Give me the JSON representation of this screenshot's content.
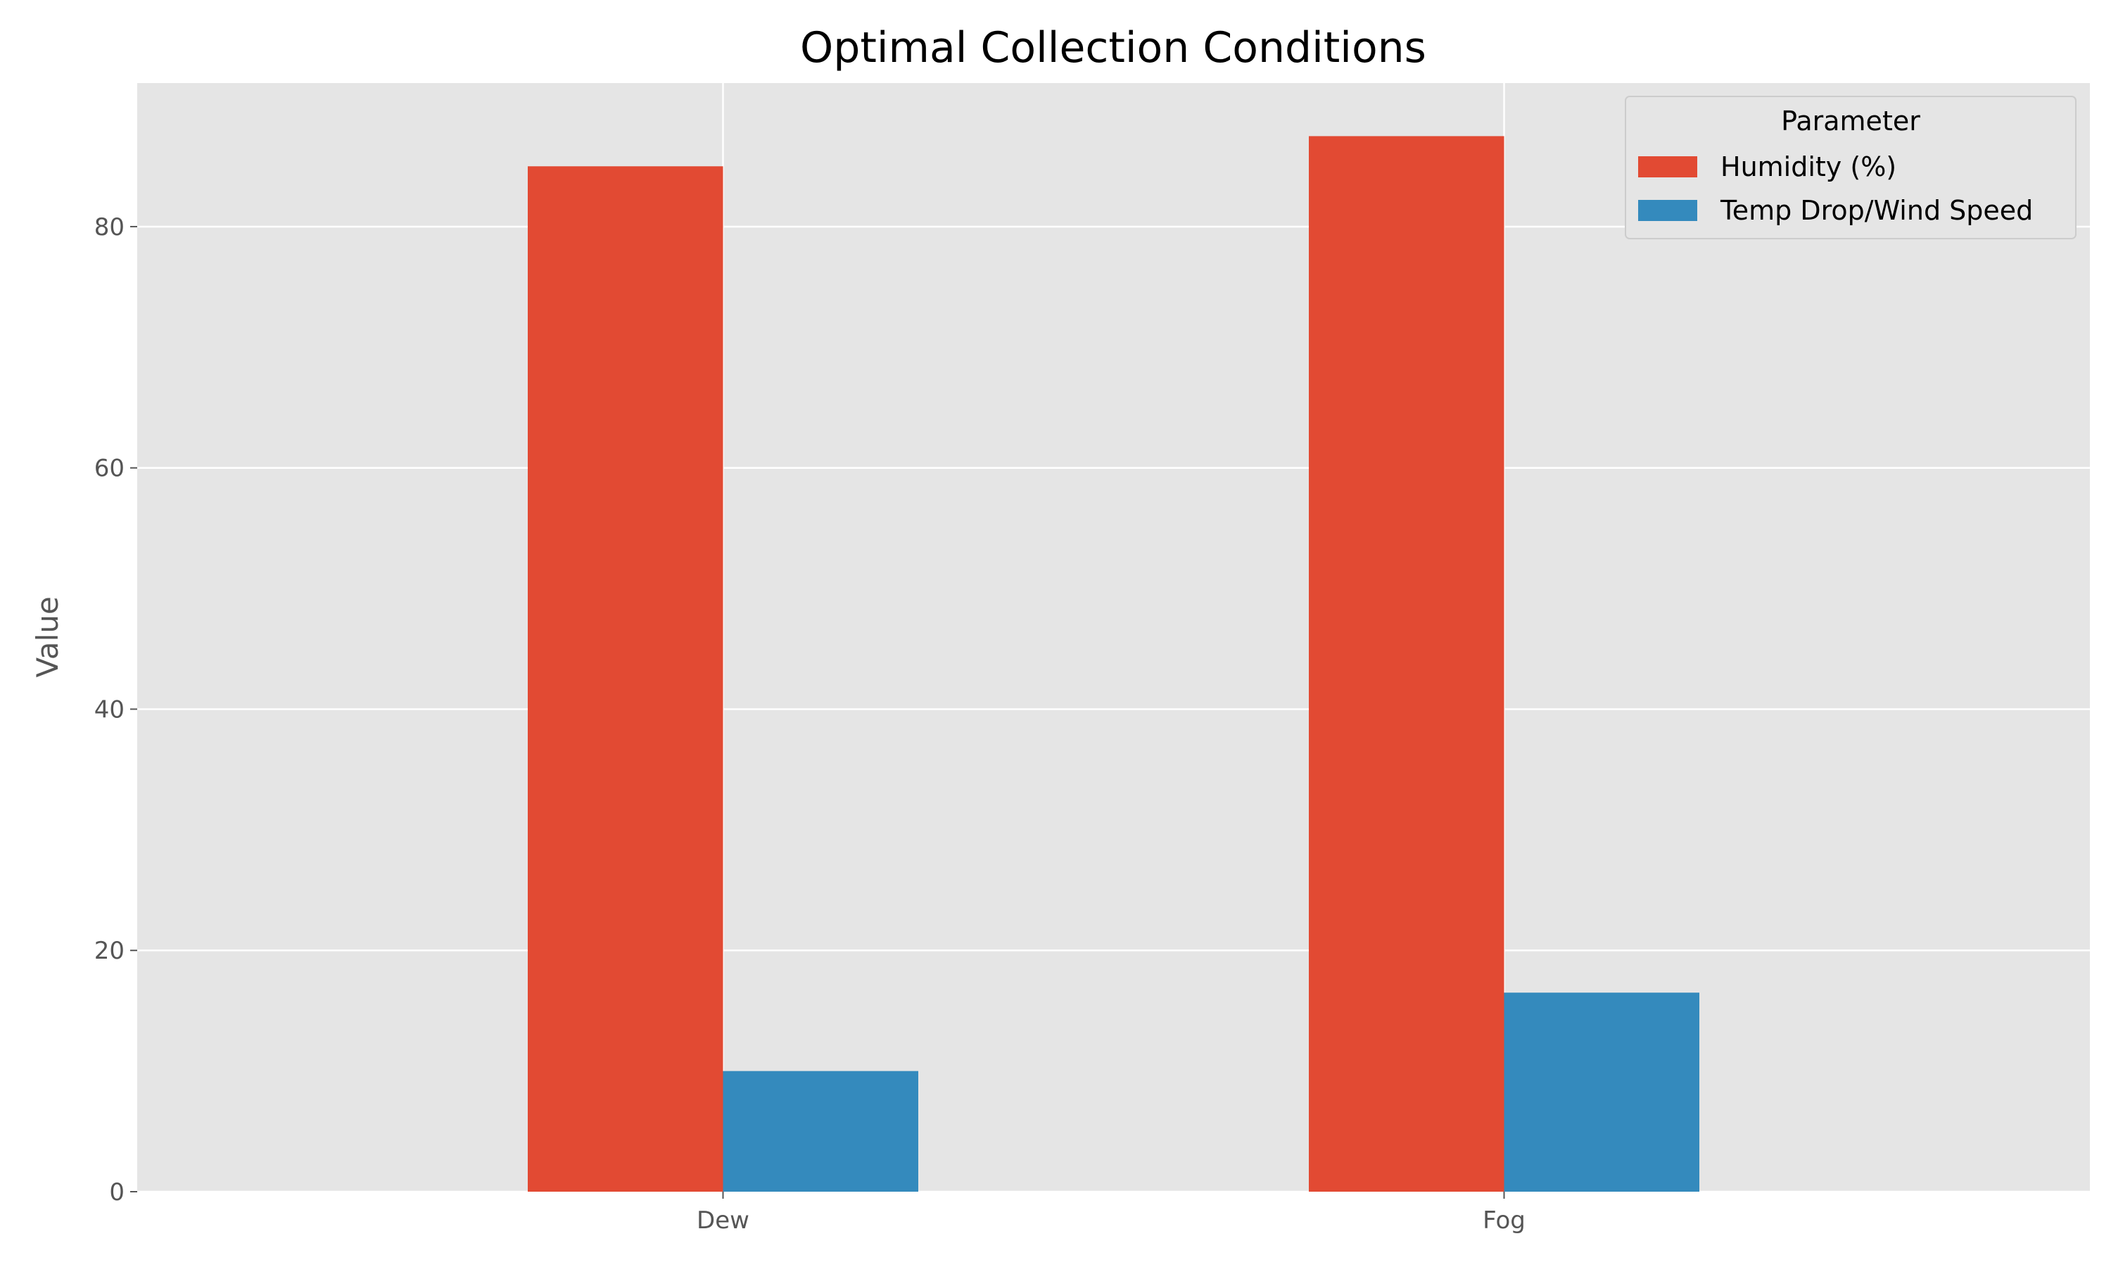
{
  "chart_data": {
    "type": "bar",
    "title": "Optimal Collection Conditions",
    "xlabel": "",
    "ylabel": "Value",
    "categories": [
      "Dew",
      "Fog"
    ],
    "series": [
      {
        "name": "Humidity (%)",
        "values": [
          85.0,
          87.5
        ],
        "color": "#E24A33"
      },
      {
        "name": "Temp Drop/Wind Speed",
        "values": [
          10.0,
          16.5
        ],
        "color": "#348ABD"
      }
    ],
    "ylim": [
      0,
      91.9
    ],
    "yticks": [
      "0",
      "20",
      "40",
      "60",
      "80"
    ],
    "grid": true,
    "legend": {
      "title": "Parameter",
      "placement": "top-right"
    },
    "colors": {
      "background": "#E5E5E5",
      "grid": "#FFFFFF",
      "text": "#555555"
    }
  }
}
